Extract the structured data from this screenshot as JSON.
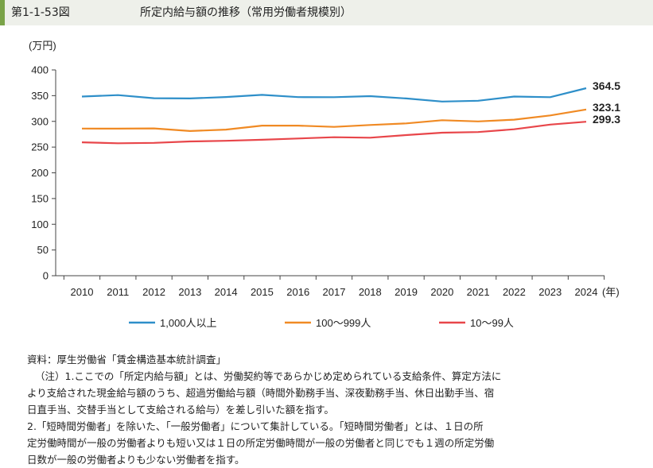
{
  "header": {
    "figure_id": "第1-1-53図",
    "title": "所定内給与額の推移（常用労働者規模別）"
  },
  "chart_data": {
    "type": "line",
    "ylabel": "(万円)",
    "xunit": "(年)",
    "ylim": [
      0,
      400
    ],
    "yticks": [
      0,
      50,
      100,
      150,
      200,
      250,
      300,
      350,
      400
    ],
    "x": [
      "2010",
      "2011",
      "2012",
      "2013",
      "2014",
      "2015",
      "2016",
      "2017",
      "2018",
      "2019",
      "2020",
      "2021",
      "2022",
      "2023",
      "2024"
    ],
    "series": [
      {
        "name": "1,000人以上",
        "color": "#2e8fc9",
        "values": [
          348.2,
          351.0,
          345.0,
          344.5,
          347.3,
          351.5,
          347.2,
          347.0,
          349.0,
          344.5,
          338.5,
          340.0,
          348.2,
          347.0,
          364.5
        ],
        "end_label": "364.5"
      },
      {
        "name": "100〜999人",
        "color": "#f08a24",
        "values": [
          286.0,
          285.9,
          286.4,
          281.2,
          284.0,
          291.8,
          291.7,
          289.2,
          293.0,
          296.0,
          302.3,
          300.0,
          303.3,
          311.5,
          323.1
        ],
        "end_label": "323.1"
      },
      {
        "name": "10〜99人",
        "color": "#e8464a",
        "values": [
          259.3,
          257.5,
          258.3,
          261.0,
          262.3,
          264.3,
          266.7,
          269.2,
          268.2,
          273.3,
          278.0,
          279.3,
          284.7,
          293.7,
          299.3
        ],
        "end_label": "299.3"
      }
    ],
    "grid": false,
    "legend": "bottom"
  },
  "notes": {
    "source": "資料：厚生労働省「賃金構造基本統計調査」",
    "note1_line1": "（注）1.ここでの「所定内給与額」とは、労働契約等であらかじめ定められている支給条件、算定方法に",
    "note1_line2": "より支給された現金給与額のうち、超過労働給与額（時間外勤務手当、深夜勤務手当、休日出勤手当、宿",
    "note1_line3": "日直手当、交替手当として支給される給与）を差し引いた額を指す。",
    "note2_line1": "2.「短時間労働者」を除いた、「一般労働者」について集計している。「短時間労働者」とは、１日の所",
    "note2_line2": "定労働時間が一般の労働者よりも短い又は１日の所定労働時間が一般の労働者と同じでも１週の所定労働",
    "note2_line3": "日数が一般の労働者よりも少ない労働者を指す。"
  }
}
